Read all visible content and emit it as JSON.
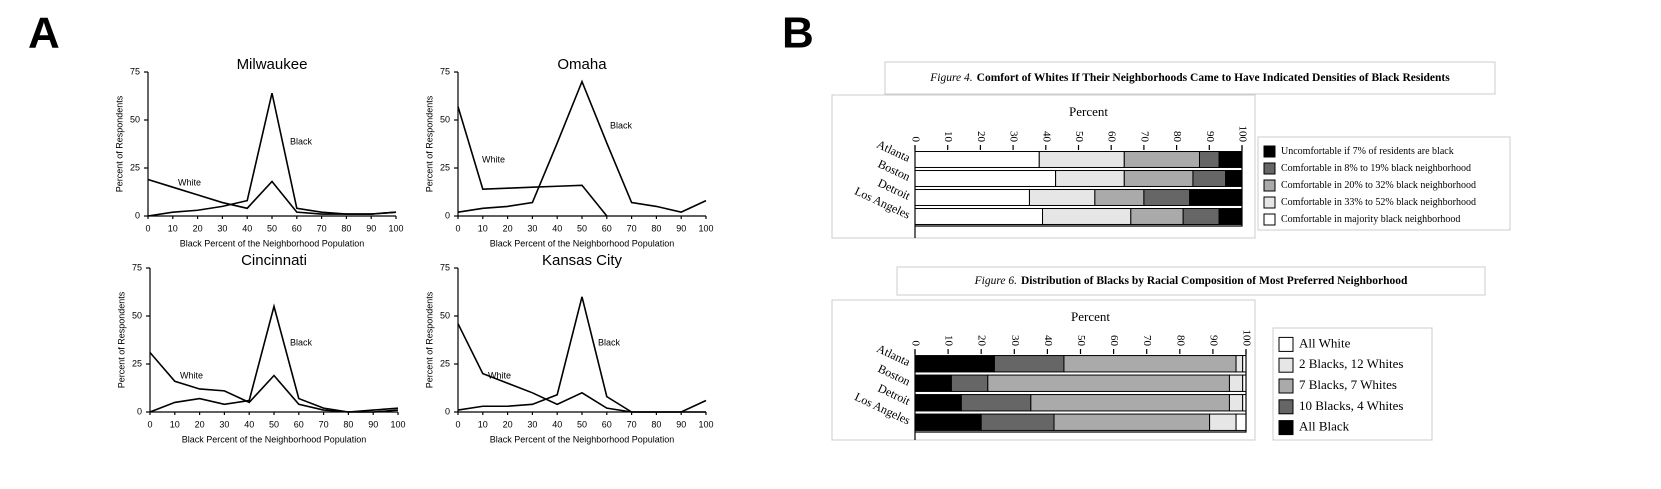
{
  "panels": [
    "A",
    "B"
  ],
  "chart_data": [
    {
      "type": "line",
      "title": "Milwaukee",
      "xlabel": "Black Percent of the Neighborhood Population",
      "ylabel": "Percent of Respondents",
      "x": [
        0,
        10,
        20,
        30,
        40,
        50,
        60,
        70,
        80,
        90,
        100
      ],
      "xlim": [
        0,
        100
      ],
      "xticks": [
        0,
        10,
        20,
        30,
        40,
        50,
        60,
        70,
        80,
        90,
        100
      ],
      "ylim": [
        0,
        75
      ],
      "yticks": [
        0,
        25,
        50,
        75
      ],
      "series": [
        {
          "name": "White",
          "color": "#000",
          "values": [
            19,
            15,
            11,
            7,
            4,
            18,
            2,
            1,
            1,
            1,
            2
          ]
        },
        {
          "name": "Black",
          "color": "#000",
          "values": [
            0,
            2,
            3,
            5,
            8,
            64,
            4,
            2,
            1,
            1,
            2
          ]
        }
      ]
    },
    {
      "type": "line",
      "title": "Omaha",
      "xlabel": "Black Percent of the Neighborhood Population",
      "ylabel": "Percent of Respondents",
      "x": [
        0,
        10,
        20,
        30,
        40,
        50,
        60,
        70,
        80,
        90,
        100
      ],
      "xlim": [
        0,
        100
      ],
      "xticks": [
        0,
        10,
        20,
        30,
        40,
        50,
        60,
        70,
        80,
        90,
        100
      ],
      "ylim": [
        0,
        75
      ],
      "yticks": [
        0,
        25,
        50,
        75
      ],
      "series": [
        {
          "name": "White",
          "color": "#000",
          "values": [
            57,
            14,
            14.5,
            15,
            15.5,
            16,
            0,
            null,
            null,
            null,
            null
          ]
        },
        {
          "name": "Black",
          "color": "#000",
          "values": [
            2,
            4,
            5,
            7,
            38,
            70,
            38,
            7,
            5,
            2,
            8
          ]
        }
      ]
    },
    {
      "type": "line",
      "title": "Cincinnati",
      "xlabel": "Black Percent of the Neighborhood Population",
      "ylabel": "Percent of Respondents",
      "x": [
        0,
        10,
        20,
        30,
        40,
        50,
        60,
        70,
        80,
        90,
        100
      ],
      "xlim": [
        0,
        100
      ],
      "xticks": [
        0,
        10,
        20,
        30,
        40,
        50,
        60,
        70,
        80,
        90,
        100
      ],
      "ylim": [
        0,
        75
      ],
      "yticks": [
        0,
        25,
        50,
        75
      ],
      "series": [
        {
          "name": "White",
          "color": "#000",
          "values": [
            31,
            16,
            12,
            11,
            5,
            19,
            4,
            1,
            0,
            0,
            1
          ]
        },
        {
          "name": "Black",
          "color": "#000",
          "values": [
            0,
            5,
            7,
            4,
            6,
            55,
            7,
            2,
            0,
            1,
            2
          ]
        }
      ]
    },
    {
      "type": "line",
      "title": "Kansas City",
      "xlabel": "Black Percent of the Neighborhood Population",
      "ylabel": "Percent of Respondents",
      "x": [
        0,
        10,
        20,
        30,
        40,
        50,
        60,
        70,
        80,
        90,
        100
      ],
      "xlim": [
        0,
        100
      ],
      "xticks": [
        0,
        10,
        20,
        30,
        40,
        50,
        60,
        70,
        80,
        90,
        100
      ],
      "ylim": [
        0,
        75
      ],
      "yticks": [
        0,
        25,
        50,
        75
      ],
      "series": [
        {
          "name": "White",
          "color": "#000",
          "values": [
            46,
            20,
            15,
            10,
            4,
            10,
            2,
            0,
            0,
            0,
            0
          ]
        },
        {
          "name": "Black",
          "color": "#000",
          "values": [
            1,
            3,
            3,
            4,
            9,
            60,
            8,
            0,
            0,
            0,
            6
          ]
        }
      ]
    },
    {
      "type": "stackedbar",
      "figure": "Figure 4.",
      "title": "Comfort of Whites If Their Neighborhoods Came to Have Indicated Densities of Black Residents",
      "xlabel": "Percent",
      "categories": [
        "Atlanta",
        "Boston",
        "Detroit",
        "Los Angeles"
      ],
      "xlim": [
        0,
        100
      ],
      "xticks": [
        0,
        10,
        20,
        30,
        40,
        50,
        60,
        70,
        80,
        90,
        100
      ],
      "series": [
        {
          "name": "Comfortable in majority black neighborhood",
          "color": "#ffffff",
          "values": [
            38,
            43,
            35,
            39
          ]
        },
        {
          "name": "Comfortable in 33% to 52% black neighborhood",
          "color": "#e6e6e6",
          "values": [
            26,
            21,
            20,
            27
          ]
        },
        {
          "name": "Comfortable in 20% to 32% black neighborhood",
          "color": "#aaaaaa",
          "values": [
            23,
            21,
            15,
            16
          ]
        },
        {
          "name": "Comfortable in 8% to 19% black neighborhood",
          "color": "#666666",
          "values": [
            6,
            10,
            14,
            11
          ]
        },
        {
          "name": "Uncomfortable if 7% of residents are black",
          "color": "#000000",
          "values": [
            7,
            5,
            16,
            7
          ]
        }
      ]
    },
    {
      "type": "stackedbar",
      "figure": "Figure 6.",
      "title": "Distribution of Blacks by Racial Composition of Most Preferred Neighborhood",
      "xlabel": "Percent",
      "categories": [
        "Atlanta",
        "Boston",
        "Detroit",
        "Los Angeles"
      ],
      "xlim": [
        0,
        100
      ],
      "xticks": [
        0,
        10,
        20,
        30,
        40,
        50,
        60,
        70,
        80,
        90,
        100
      ],
      "series": [
        {
          "name": "All Black",
          "color": "#000000",
          "values": [
            24,
            11,
            14,
            20
          ]
        },
        {
          "name": "10 Blacks, 4 Whites",
          "color": "#666666",
          "values": [
            21,
            11,
            21,
            22
          ]
        },
        {
          "name": "7 Blacks, 7 Whites",
          "color": "#aaaaaa",
          "values": [
            52,
            73,
            60,
            47
          ]
        },
        {
          "name": "2 Blacks, 12 Whites",
          "color": "#e6e6e6",
          "values": [
            2,
            4,
            4,
            8
          ]
        },
        {
          "name": "All White",
          "color": "#ffffff",
          "values": [
            1,
            1,
            1,
            3
          ]
        }
      ]
    }
  ]
}
